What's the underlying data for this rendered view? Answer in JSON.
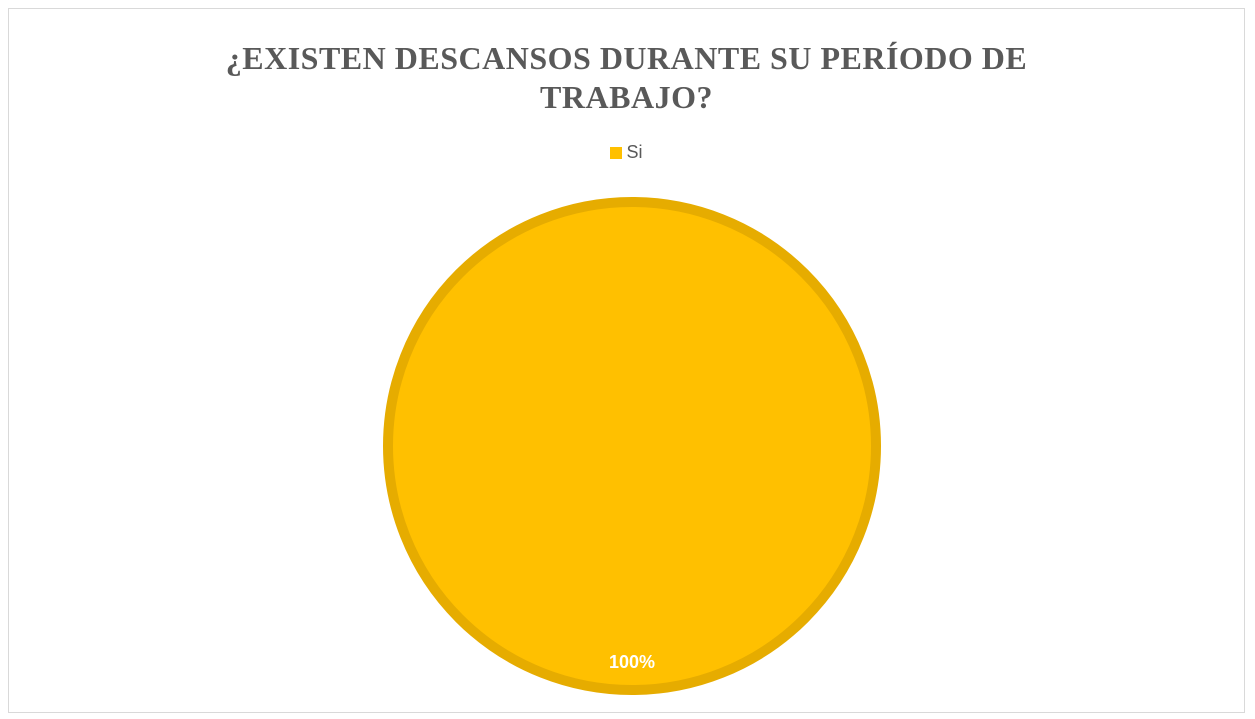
{
  "chart_data": {
    "type": "pie",
    "title": "¿EXISTEN DESCANSOS DURANTE SU PERÍODO DE TRABAJO?",
    "title_lines": [
      "¿EXISTEN DESCANSOS DURANTE SU PERÍODO DE",
      "TRABAJO?"
    ],
    "categories": [
      "Si"
    ],
    "values": [
      100
    ],
    "data_labels": [
      "100%"
    ],
    "legend_position": "top",
    "colors": {
      "Si": "#FFC000",
      "slice_border": "#E6AC00",
      "title": "#595959",
      "legend_text": "#595959",
      "data_label": "#FFFFFF",
      "frame_border": "#D9D9D9"
    }
  }
}
